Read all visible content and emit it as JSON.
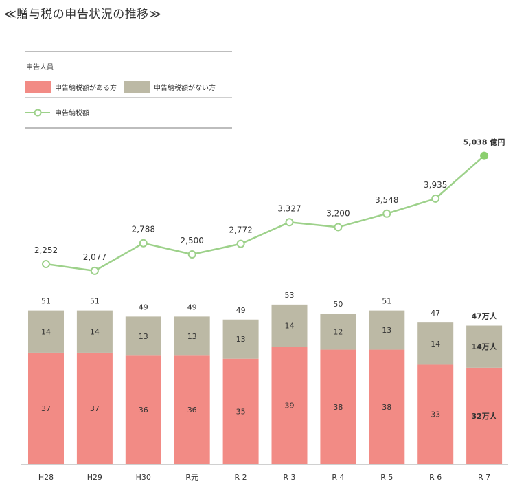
{
  "title": "≪贈与税の申告状況の推移≫",
  "legend": {
    "people_label": "申告人員",
    "with_tax_label": "申告納税額がある方",
    "without_tax_label": "申告納税額がない方",
    "amount_label": "申告納税額"
  },
  "colors": {
    "with_tax": "#f28b85",
    "without_tax": "#bcb9a5",
    "line": "#9dd18a",
    "last_point": "#8bcf6e"
  },
  "chart_data": {
    "type": "bar+line",
    "categories": [
      "H28",
      "H29",
      "H30",
      "R元",
      "R 2",
      "R 3",
      "R 4",
      "R 5",
      "R 6",
      "R 7"
    ],
    "series": [
      {
        "name": "申告納税額がある方",
        "values": [
          37,
          37,
          36,
          36,
          35,
          39,
          38,
          38,
          33,
          32
        ]
      },
      {
        "name": "申告納税額がない方",
        "values": [
          14,
          14,
          13,
          13,
          13,
          14,
          12,
          13,
          14,
          14
        ]
      },
      {
        "name": "申告納税額",
        "values": [
          2252,
          2077,
          2788,
          2500,
          2772,
          3327,
          3200,
          3548,
          3935,
          5038
        ]
      }
    ],
    "totals": [
      51,
      51,
      49,
      49,
      49,
      53,
      50,
      51,
      47,
      47
    ],
    "labels": {
      "with_tax": [
        "37",
        "37",
        "36",
        "36",
        "35",
        "39",
        "38",
        "38",
        "33",
        "32万人"
      ],
      "without_tax": [
        "14",
        "14",
        "13",
        "13",
        "13",
        "14",
        "12",
        "13",
        "14",
        "14万人"
      ],
      "totals": [
        "51",
        "51",
        "49",
        "49",
        "49",
        "53",
        "50",
        "51",
        "47",
        "47万人"
      ],
      "amounts": [
        "2,252",
        "2,077",
        "2,788",
        "2,500",
        "2,772",
        "3,327",
        "3,200",
        "3,548",
        "3,935",
        "5,038 億円"
      ]
    }
  }
}
